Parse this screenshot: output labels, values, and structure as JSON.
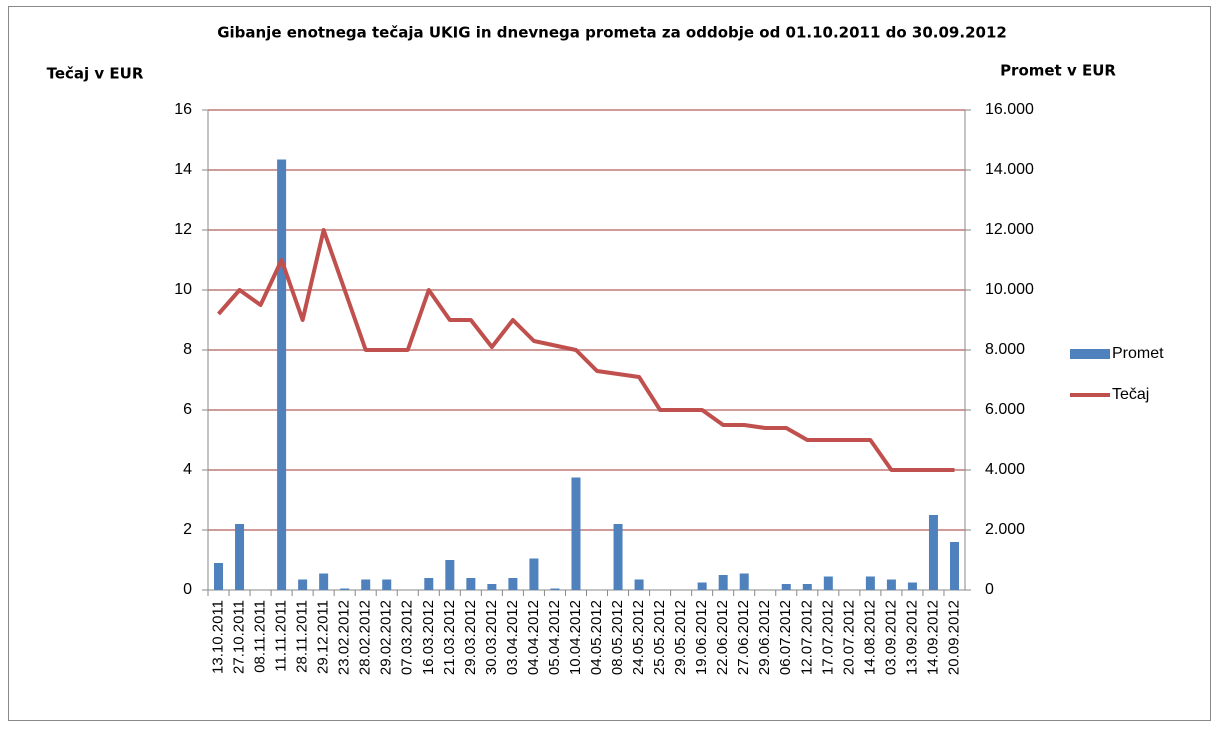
{
  "chart_data": {
    "type": "bar-line",
    "title": "Gibanje enotnega  tečaja UKIG in dnevnega prometa za oddobje  od 01.10.2011  do 30.09.2012",
    "y_label": "Tečaj v EUR",
    "y2_label": "Promet v EUR",
    "categories": [
      "13.10.2011",
      "27.10.2011",
      "08.11.2011",
      "11.11.2011",
      "28.11.2011",
      "29.12.2011",
      "23.02.2012",
      "28.02.2012",
      "29.02.2012",
      "07.03.2012",
      "16.03.2012",
      "21.03.2012",
      "29.03.2012",
      "30.03.2012",
      "03.04.2012",
      "04.04.2012",
      "05.04.2012",
      "10.04.2012",
      "04.05.2012",
      "08.05.2012",
      "24.05.2012",
      "25.05.2012",
      "29.05.2012",
      "19.06.2012",
      "22.06.2012",
      "27.06.2012",
      "29.06.2012",
      "06.07.2012",
      "12.07.2012",
      "17.07.2012",
      "20.07.2012",
      "14.08.2012",
      "03.09.2012",
      "13.09.2012",
      "14.09.2012",
      "20.09.2012"
    ],
    "series": [
      {
        "name": "Promet",
        "type": "bar",
        "axis": "y2",
        "color": "#4f81bd",
        "values": [
          900,
          2200,
          0,
          14350,
          350,
          550,
          50,
          350,
          350,
          0,
          400,
          1000,
          400,
          200,
          400,
          1050,
          50,
          3750,
          0,
          2200,
          350,
          0,
          0,
          250,
          500,
          550,
          0,
          200,
          200,
          450,
          0,
          450,
          350,
          250,
          2500,
          1600
        ]
      },
      {
        "name": "Tečaj",
        "type": "line",
        "color": "#c0504d",
        "values": [
          9.2,
          10,
          9.5,
          11,
          9,
          12,
          10,
          8,
          8,
          8,
          10,
          9,
          9,
          8.1,
          9,
          8.3,
          8.15,
          8,
          7.3,
          7.2,
          7.1,
          6,
          6,
          6,
          5.5,
          5.5,
          5.4,
          5.4,
          5,
          5,
          5,
          5,
          4,
          4,
          4,
          4
        ]
      }
    ],
    "ylim": [
      0,
      16
    ],
    "yticks": [
      0,
      2,
      4,
      6,
      8,
      10,
      12,
      14,
      16
    ],
    "y2lim": [
      0,
      16000
    ],
    "y2ticks": [
      0,
      {
        "value": 2000,
        "label": "2.000"
      },
      {
        "value": 4000,
        "label": "4.000"
      },
      {
        "value": 6000,
        "label": "6.000"
      },
      {
        "value": 8000,
        "label": "8.000"
      },
      {
        "value": 10000,
        "label": "10.000"
      },
      {
        "value": 12000,
        "label": "12.000"
      },
      {
        "value": 14000,
        "label": "14.000"
      },
      {
        "value": 16000,
        "label": "16.000"
      }
    ],
    "grid": true,
    "grid_color": "#d09a98",
    "legend": "right"
  }
}
